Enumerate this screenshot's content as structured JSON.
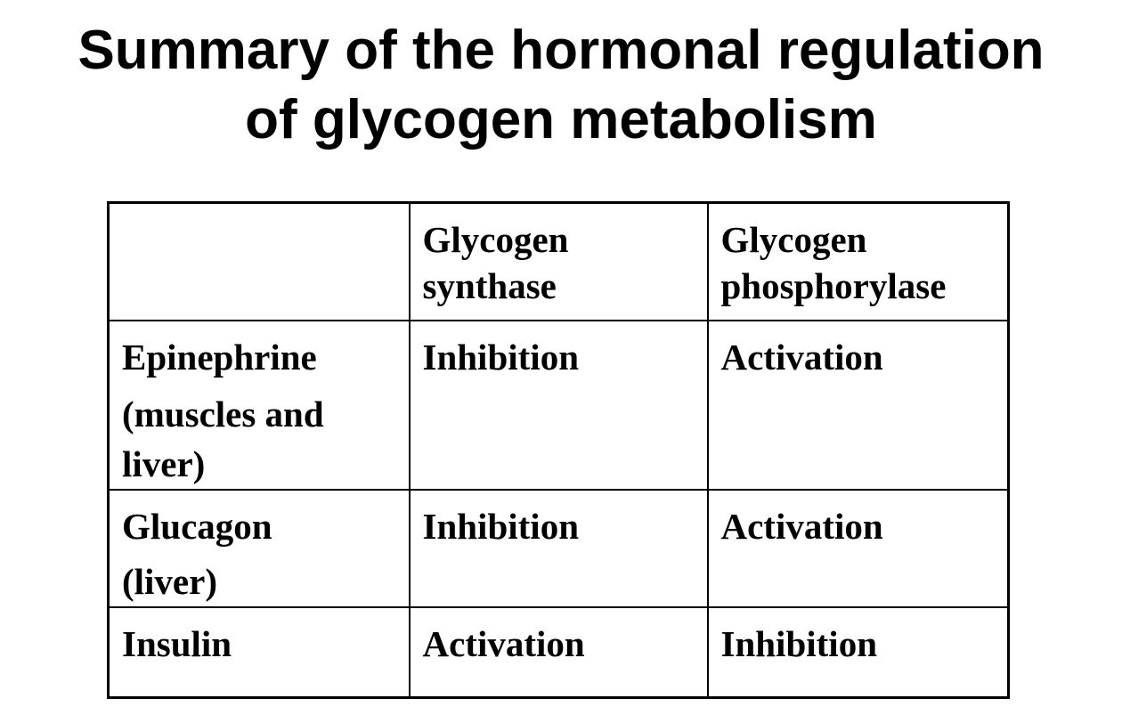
{
  "title": {
    "line1": "Summary of the hormonal regulation",
    "line2": "of glycogen metabolism"
  },
  "table": {
    "headers": [
      "",
      "Glycogen synthase",
      "Glycogen phosphorylase"
    ],
    "rows": [
      {
        "hormone": "Epinephrine",
        "tissue": "(muscles and liver)",
        "synthase": "Inhibition",
        "phosphorylase": "Activation"
      },
      {
        "hormone": "Glucagon",
        "tissue": "(liver)",
        "synthase": "Inhibition",
        "phosphorylase": "Activation"
      },
      {
        "hormone": "Insulin",
        "tissue": "",
        "synthase": "Activation",
        "phosphorylase": "Inhibition"
      }
    ]
  }
}
